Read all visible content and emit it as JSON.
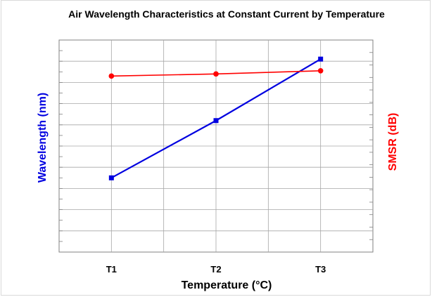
{
  "chart_data": {
    "type": "line",
    "title": "Air Wavelength Characteristics at Constant Current by Temperature",
    "xlabel": "Temperature (°C)",
    "ylabel_left": "Wavelength (nm)",
    "ylabel_right": "SMSR (dB)",
    "categories": [
      "T1",
      "T2",
      "T3"
    ],
    "grid": true,
    "ylim_left": [
      0,
      10
    ],
    "ylim_right": [
      0,
      10
    ],
    "series": [
      {
        "axis": "left",
        "color": "#0000e0",
        "marker": "square",
        "values": [
          3.5,
          6.2,
          9.1
        ]
      },
      {
        "axis": "right",
        "color": "#ff0000",
        "marker": "circle",
        "values": [
          8.3,
          8.4,
          8.55
        ]
      }
    ]
  }
}
